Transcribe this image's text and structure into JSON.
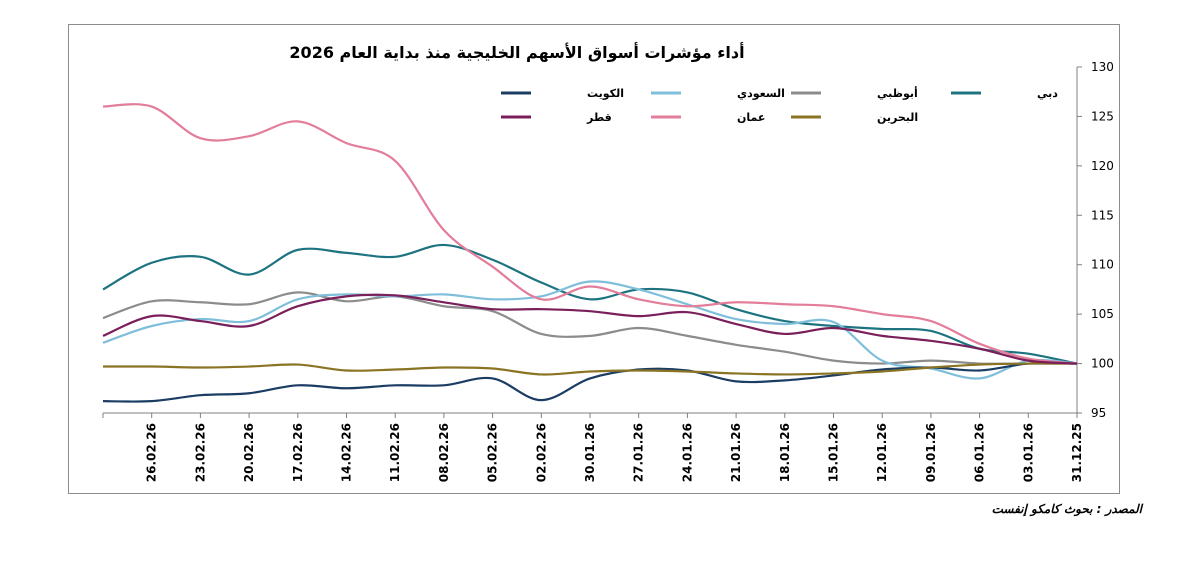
{
  "chart_data": {
    "type": "line",
    "title": "أداء مؤشرات أسواق الأسهم الخليجية منذ بداية العام 2026",
    "x_ticks": [
      "26.02.26",
      "23.02.26",
      "20.02.26",
      "17.02.26",
      "14.02.26",
      "11.02.26",
      "08.02.26",
      "05.02.26",
      "02.02.26",
      "30.01.26",
      "27.01.26",
      "24.01.26",
      "21.01.26",
      "18.01.26",
      "15.01.26",
      "12.01.26",
      "09.01.26",
      "06.01.26",
      "03.01.26",
      "31.12.25"
    ],
    "x": [
      "28.02.26",
      "26.02.26",
      "23.02.26",
      "20.02.26",
      "17.02.26",
      "14.02.26",
      "11.02.26",
      "08.02.26",
      "05.02.26",
      "02.02.26",
      "30.01.26",
      "27.01.26",
      "24.01.26",
      "21.01.26",
      "18.01.26",
      "15.01.26",
      "12.01.26",
      "09.01.26",
      "06.01.26",
      "03.01.26",
      "31.12.25"
    ],
    "ylim": [
      95,
      130
    ],
    "y_ticks": [
      95,
      100,
      105,
      110,
      115,
      120,
      125,
      130
    ],
    "y_axis_side": "right",
    "grid": false,
    "legend_position": "top-right",
    "series": [
      {
        "name": "دبي",
        "color": "#1d7480",
        "values": [
          107.5,
          110.2,
          110.8,
          109.0,
          111.5,
          111.2,
          110.8,
          112.0,
          110.5,
          108.2,
          106.5,
          107.5,
          107.2,
          105.5,
          104.3,
          103.8,
          103.5,
          103.3,
          101.5,
          101.0,
          100.0
        ]
      },
      {
        "name": "أبوظبي",
        "color": "#8c8c8c",
        "values": [
          104.6,
          106.3,
          106.2,
          106.0,
          107.2,
          106.3,
          106.8,
          105.8,
          105.3,
          103.0,
          102.8,
          103.6,
          102.8,
          101.9,
          101.2,
          100.3,
          100.0,
          100.3,
          100.0,
          100.0,
          100.0
        ]
      },
      {
        "name": "السعودي",
        "color": "#7fbfdb",
        "values": [
          102.1,
          103.8,
          104.5,
          104.3,
          106.5,
          107.0,
          106.8,
          107.0,
          106.5,
          106.8,
          108.3,
          107.5,
          106.0,
          104.5,
          104.0,
          104.2,
          100.3,
          99.5,
          98.5,
          100.3,
          100.0
        ]
      },
      {
        "name": "الكويت",
        "color": "#1b3d63",
        "values": [
          96.2,
          96.2,
          96.8,
          97.0,
          97.8,
          97.5,
          97.8,
          97.8,
          98.5,
          96.3,
          98.5,
          99.4,
          99.3,
          98.2,
          98.3,
          98.8,
          99.4,
          99.6,
          99.3,
          100.0,
          100.0
        ]
      },
      {
        "name": "البحرين",
        "color": "#8a7424",
        "values": [
          99.7,
          99.7,
          99.6,
          99.7,
          99.9,
          99.3,
          99.4,
          99.6,
          99.5,
          98.9,
          99.2,
          99.3,
          99.2,
          99.0,
          98.9,
          99.0,
          99.2,
          99.6,
          99.9,
          100.0,
          100.0
        ]
      },
      {
        "name": "عمان",
        "color": "#e27d9a",
        "values": [
          126.0,
          126.0,
          122.8,
          123.0,
          124.5,
          122.3,
          120.5,
          113.5,
          109.8,
          106.5,
          107.8,
          106.5,
          105.8,
          106.2,
          106.0,
          105.8,
          105.0,
          104.3,
          102.0,
          100.5,
          100.0
        ]
      },
      {
        "name": "قطر",
        "color": "#7b1f5b",
        "values": [
          102.8,
          104.8,
          104.3,
          103.8,
          105.8,
          106.8,
          106.9,
          106.2,
          105.5,
          105.5,
          105.3,
          104.8,
          105.2,
          104.0,
          103.0,
          103.6,
          102.8,
          102.3,
          101.5,
          100.3,
          100.0
        ]
      }
    ]
  },
  "source_note": "المصدر : بحوث كامكو إنفست"
}
